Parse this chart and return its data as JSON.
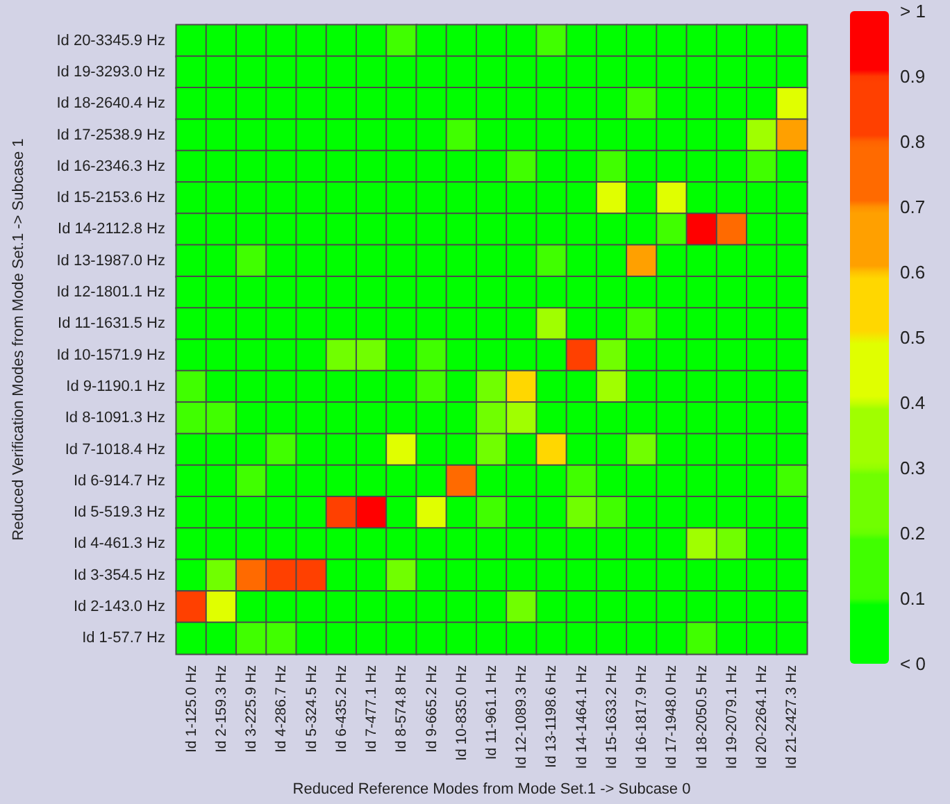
{
  "chart_data": {
    "type": "heatmap",
    "xlabel": "Reduced Reference Modes from Mode Set.1 -> Subcase 0",
    "ylabel": "Reduced Verification Modes from Mode Set.1 -> Subcase 1",
    "categories": [
      "Id 1-125.0 Hz",
      "Id 2-159.3 Hz",
      "Id 3-225.9 Hz",
      "Id 4-286.7 Hz",
      "Id 5-324.5 Hz",
      "Id 6-435.2 Hz",
      "Id 7-477.1 Hz",
      "Id 8-574.8 Hz",
      "Id 9-665.2 Hz",
      "Id 10-835.0 Hz",
      "Id 11-961.1 Hz",
      "Id 12-1089.3 Hz",
      "Id 13-1198.6 Hz",
      "Id 14-1464.1 Hz",
      "Id 15-1633.2 Hz",
      "Id 16-1817.9 Hz",
      "Id 17-1948.0 Hz",
      "Id 18-2050.5 Hz",
      "Id 19-2079.1 Hz",
      "Id 20-2264.1 Hz",
      "Id 21-2427.3 Hz"
    ],
    "y_categories": [
      "Id 20-3345.9 Hz",
      "Id 19-3293.0 Hz",
      "Id 18-2640.4 Hz",
      "Id 17-2538.9 Hz",
      "Id 16-2346.3 Hz",
      "Id 15-2153.6 Hz",
      "Id 14-2112.8 Hz",
      "Id 13-1987.0 Hz",
      "Id 12-1801.1 Hz",
      "Id 11-1631.5 Hz",
      "Id 10-1571.9 Hz",
      "Id 9-1190.1 Hz",
      "Id 8-1091.3 Hz",
      "Id 7-1018.4 Hz",
      "Id 6-914.7 Hz",
      "Id 5-519.3 Hz",
      "Id 4-461.3 Hz",
      "Id 3-354.5 Hz",
      "Id 2-143.0 Hz",
      "Id 1-57.7 Hz"
    ],
    "cells": [
      [
        0.05,
        0.05,
        0.05,
        0.05,
        0.05,
        0.05,
        0.05,
        0.15,
        0.05,
        0.05,
        0.05,
        0.05,
        0.15,
        0.05,
        0.05,
        0.05,
        0.05,
        0.05,
        0.05,
        0.05,
        0.05
      ],
      [
        0.05,
        0.05,
        0.05,
        0.05,
        0.05,
        0.05,
        0.05,
        0.05,
        0.05,
        0.05,
        0.05,
        0.05,
        0.05,
        0.05,
        0.05,
        0.05,
        0.05,
        0.05,
        0.05,
        0.05,
        0.05
      ],
      [
        0.05,
        0.05,
        0.05,
        0.05,
        0.05,
        0.05,
        0.05,
        0.05,
        0.05,
        0.05,
        0.05,
        0.05,
        0.05,
        0.05,
        0.05,
        0.15,
        0.05,
        0.05,
        0.05,
        0.05,
        0.45
      ],
      [
        0.05,
        0.05,
        0.05,
        0.05,
        0.05,
        0.05,
        0.05,
        0.05,
        0.05,
        0.15,
        0.05,
        0.05,
        0.05,
        0.05,
        0.05,
        0.05,
        0.05,
        0.05,
        0.05,
        0.35,
        0.65
      ],
      [
        0.05,
        0.05,
        0.05,
        0.05,
        0.05,
        0.05,
        0.05,
        0.05,
        0.05,
        0.05,
        0.05,
        0.15,
        0.05,
        0.05,
        0.15,
        0.05,
        0.05,
        0.05,
        0.05,
        0.15,
        0.05
      ],
      [
        0.05,
        0.05,
        0.05,
        0.05,
        0.05,
        0.05,
        0.05,
        0.05,
        0.05,
        0.05,
        0.05,
        0.05,
        0.05,
        0.05,
        0.45,
        0.05,
        0.45,
        0.05,
        0.05,
        0.05,
        0.05
      ],
      [
        0.05,
        0.05,
        0.05,
        0.05,
        0.05,
        0.05,
        0.05,
        0.05,
        0.05,
        0.05,
        0.05,
        0.05,
        0.05,
        0.05,
        0.05,
        0.05,
        0.15,
        0.95,
        0.75,
        0.05,
        0.05
      ],
      [
        0.05,
        0.05,
        0.15,
        0.05,
        0.05,
        0.05,
        0.05,
        0.05,
        0.05,
        0.05,
        0.05,
        0.05,
        0.15,
        0.05,
        0.05,
        0.65,
        0.05,
        0.05,
        0.05,
        0.05,
        0.05
      ],
      [
        0.05,
        0.05,
        0.05,
        0.05,
        0.05,
        0.05,
        0.05,
        0.05,
        0.05,
        0.05,
        0.05,
        0.05,
        0.05,
        0.05,
        0.05,
        0.05,
        0.05,
        0.05,
        0.05,
        0.05,
        0.05
      ],
      [
        0.05,
        0.05,
        0.05,
        0.05,
        0.05,
        0.05,
        0.05,
        0.05,
        0.05,
        0.05,
        0.05,
        0.05,
        0.35,
        0.05,
        0.05,
        0.15,
        0.05,
        0.05,
        0.05,
        0.05,
        0.05
      ],
      [
        0.05,
        0.05,
        0.05,
        0.05,
        0.05,
        0.25,
        0.25,
        0.05,
        0.15,
        0.05,
        0.05,
        0.05,
        0.05,
        0.85,
        0.25,
        0.05,
        0.05,
        0.05,
        0.05,
        0.05,
        0.05
      ],
      [
        0.15,
        0.05,
        0.05,
        0.05,
        0.05,
        0.05,
        0.05,
        0.05,
        0.15,
        0.05,
        0.25,
        0.55,
        0.05,
        0.05,
        0.35,
        0.05,
        0.05,
        0.05,
        0.05,
        0.05,
        0.05
      ],
      [
        0.15,
        0.15,
        0.05,
        0.05,
        0.05,
        0.05,
        0.05,
        0.05,
        0.05,
        0.05,
        0.25,
        0.35,
        0.05,
        0.05,
        0.05,
        0.05,
        0.05,
        0.05,
        0.05,
        0.05,
        0.05
      ],
      [
        0.05,
        0.05,
        0.05,
        0.15,
        0.05,
        0.05,
        0.05,
        0.45,
        0.05,
        0.05,
        0.25,
        0.05,
        0.55,
        0.05,
        0.05,
        0.25,
        0.05,
        0.05,
        0.05,
        0.05,
        0.05
      ],
      [
        0.05,
        0.05,
        0.15,
        0.05,
        0.05,
        0.05,
        0.05,
        0.05,
        0.05,
        0.75,
        0.05,
        0.05,
        0.05,
        0.15,
        0.05,
        0.05,
        0.05,
        0.05,
        0.05,
        0.05,
        0.15
      ],
      [
        0.05,
        0.05,
        0.05,
        0.05,
        0.05,
        0.85,
        0.95,
        0.05,
        0.45,
        0.05,
        0.15,
        0.05,
        0.05,
        0.25,
        0.15,
        0.05,
        0.05,
        0.05,
        0.05,
        0.05,
        0.05
      ],
      [
        0.05,
        0.05,
        0.05,
        0.05,
        0.05,
        0.05,
        0.05,
        0.05,
        0.05,
        0.05,
        0.05,
        0.05,
        0.05,
        0.05,
        0.05,
        0.05,
        0.05,
        0.35,
        0.25,
        0.05,
        0.05
      ],
      [
        0.05,
        0.25,
        0.75,
        0.85,
        0.85,
        0.05,
        0.05,
        0.25,
        0.05,
        0.05,
        0.05,
        0.05,
        0.05,
        0.05,
        0.05,
        0.05,
        0.05,
        0.05,
        0.05,
        0.05,
        0.05
      ],
      [
        0.85,
        0.45,
        0.05,
        0.05,
        0.05,
        0.05,
        0.05,
        0.05,
        0.05,
        0.05,
        0.05,
        0.25,
        0.05,
        0.05,
        0.05,
        0.05,
        0.05,
        0.05,
        0.05,
        0.05,
        0.05
      ],
      [
        0.05,
        0.05,
        0.15,
        0.15,
        0.05,
        0.05,
        0.05,
        0.05,
        0.05,
        0.05,
        0.05,
        0.05,
        0.05,
        0.05,
        0.05,
        0.05,
        0.05,
        0.15,
        0.05,
        0.05,
        0.05
      ]
    ],
    "clim": [
      0,
      1
    ],
    "cticks": [
      {
        "value": 0,
        "label": "< 0"
      },
      0.1,
      0.2,
      0.3,
      0.4,
      0.5,
      0.6,
      0.7,
      0.8,
      0.9,
      {
        "value": 1,
        "label": "> 1"
      }
    ]
  }
}
